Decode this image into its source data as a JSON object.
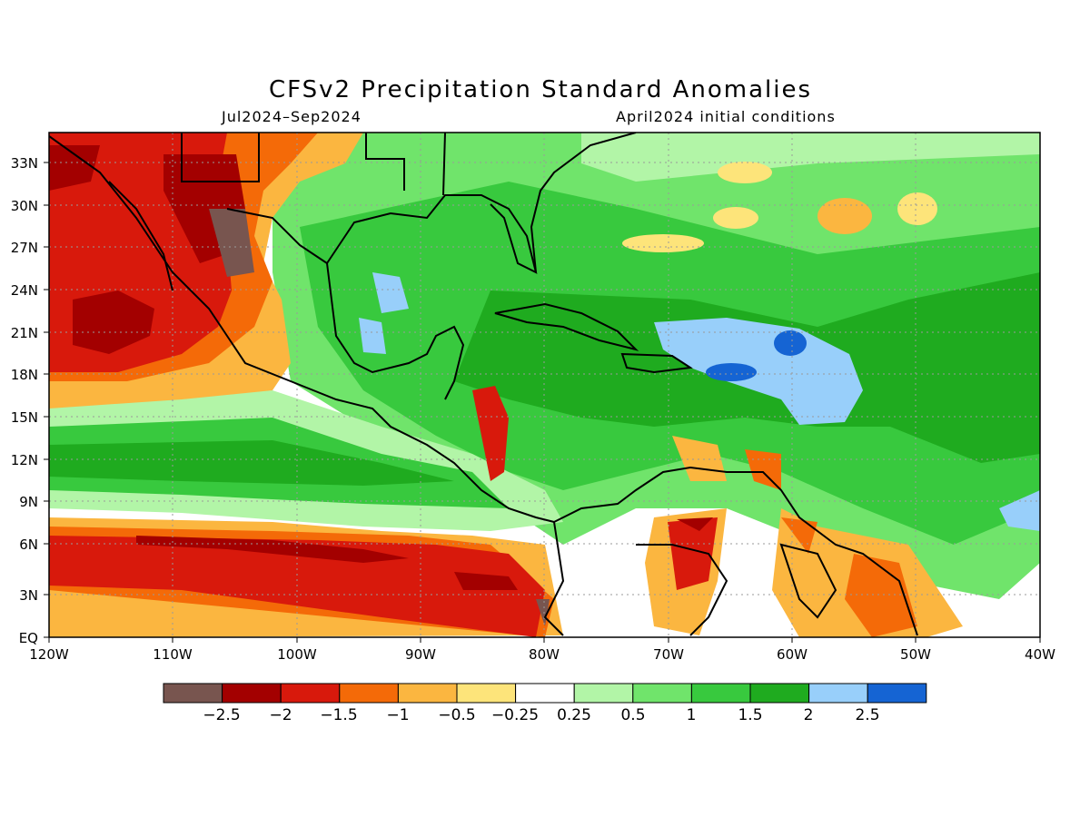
{
  "title": "CFSv2 Precipitation Standard Anomalies",
  "period": "Jul2024–Sep2024",
  "initial_conditions": "April2024 initial conditions",
  "axes": {
    "lat_ticks": [
      "33N",
      "30N",
      "27N",
      "24N",
      "21N",
      "18N",
      "15N",
      "12N",
      "9N",
      "6N",
      "3N",
      "EQ"
    ],
    "lon_ticks": [
      "120W",
      "110W",
      "100W",
      "90W",
      "80W",
      "70W",
      "60W",
      "50W",
      "40W"
    ]
  },
  "legend": {
    "colors": [
      "#78554f",
      "#a30000",
      "#d8190c",
      "#f46a08",
      "#fbb640",
      "#fde47a",
      "#ffffff",
      "#b2f5a7",
      "#70e46b",
      "#38c93e",
      "#1fab1f",
      "#98cffa",
      "#1564d3"
    ],
    "labels": [
      "−2.5",
      "−2",
      "−1.5",
      "−1",
      "−0.5",
      "−0.25",
      "0.25",
      "0.5",
      "1",
      "1.5",
      "2",
      "2.5"
    ]
  }
}
